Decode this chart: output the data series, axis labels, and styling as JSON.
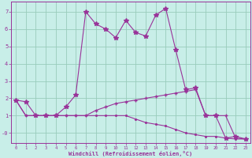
{
  "xlabel": "Windchill (Refroidissement éolien,°C)",
  "bg_color": "#c8eee8",
  "grid_color": "#99ccbb",
  "line_color": "#993399",
  "xlim": [
    -0.5,
    23.5
  ],
  "ylim": [
    -0.6,
    7.6
  ],
  "xticks": [
    0,
    1,
    2,
    3,
    4,
    5,
    6,
    7,
    8,
    9,
    10,
    11,
    12,
    13,
    14,
    15,
    16,
    17,
    18,
    19,
    20,
    21,
    22,
    23
  ],
  "yticks": [
    0,
    1,
    2,
    3,
    4,
    5,
    6,
    7
  ],
  "ytick_labels": [
    "-0",
    "1",
    "2",
    "3",
    "4",
    "5",
    "6",
    "7"
  ],
  "line1_x": [
    0,
    1,
    2,
    3,
    4,
    5,
    6,
    7,
    8,
    9,
    10,
    11,
    12,
    13,
    14,
    15,
    16,
    17,
    18,
    19,
    20,
    21,
    22,
    23
  ],
  "line1_y": [
    1.9,
    1.8,
    1.0,
    1.0,
    1.0,
    1.5,
    2.2,
    7.0,
    6.3,
    6.0,
    5.5,
    6.5,
    5.8,
    5.6,
    6.8,
    7.2,
    4.8,
    2.5,
    2.6,
    1.0,
    1.0,
    -0.3,
    -0.2,
    -0.35
  ],
  "line2_x": [
    0,
    1,
    2,
    3,
    4,
    5,
    6,
    7,
    8,
    9,
    10,
    11,
    12,
    13,
    14,
    15,
    16,
    17,
    18,
    19,
    20,
    21,
    22,
    23
  ],
  "line2_y": [
    1.9,
    1.0,
    1.0,
    1.0,
    1.0,
    1.0,
    1.0,
    1.0,
    1.3,
    1.5,
    1.7,
    1.8,
    1.9,
    2.0,
    2.1,
    2.2,
    2.3,
    2.4,
    2.5,
    1.0,
    1.0,
    1.0,
    -0.3,
    -0.35
  ],
  "line3_x": [
    0,
    1,
    2,
    3,
    4,
    5,
    6,
    7,
    8,
    9,
    10,
    11,
    12,
    13,
    14,
    15,
    16,
    17,
    18,
    19,
    20,
    21,
    22,
    23
  ],
  "line3_y": [
    1.9,
    1.0,
    1.0,
    1.0,
    1.0,
    1.0,
    1.0,
    1.0,
    1.0,
    1.0,
    1.0,
    1.0,
    0.8,
    0.6,
    0.5,
    0.4,
    0.2,
    0.0,
    -0.1,
    -0.2,
    -0.2,
    -0.3,
    -0.35,
    -0.35
  ]
}
